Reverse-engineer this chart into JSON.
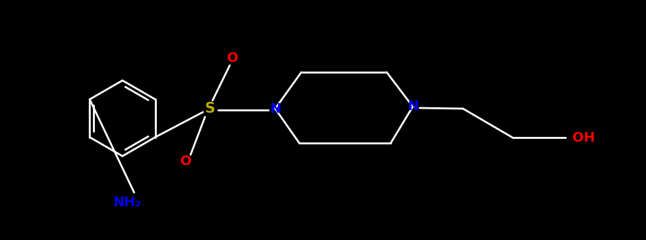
{
  "bg_color": "#000000",
  "bond_color": "#ffffff",
  "atom_colors": {
    "N": "#0000ee",
    "O": "#ff0000",
    "S": "#bbaa00",
    "OH": "#ff0000",
    "NH2": "#0000ee"
  },
  "figsize": [
    9.39,
    3.49
  ],
  "dpi": 100,
  "bond_lw": 2.0,
  "font_size": 14
}
